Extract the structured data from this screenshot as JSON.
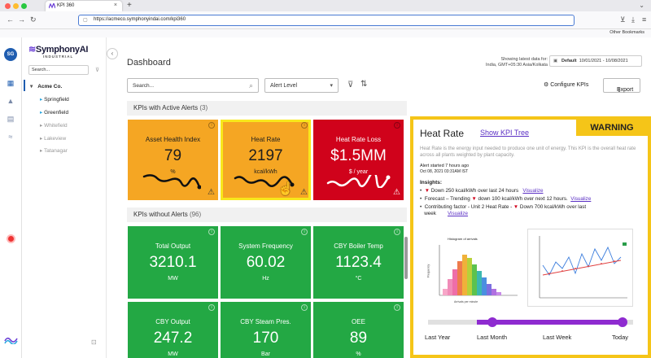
{
  "browser": {
    "tab_title": "KPI 360",
    "url": "https://acmeco.symphonyindai.com/kpi360",
    "bookmarks": "Other Bookmarks"
  },
  "rail": {
    "avatar": "SG"
  },
  "sidebar": {
    "logo": "SymphonyAI",
    "logo_sub": "INDUSTRIAL",
    "search_placeholder": "Search...",
    "root": "Acme Co.",
    "items": [
      {
        "label": "Springfield"
      },
      {
        "label": "Greenfield"
      },
      {
        "label": "Whitefield"
      },
      {
        "label": "Lakeview"
      },
      {
        "label": "Tatanagar"
      }
    ]
  },
  "header": {
    "title": "Dashboard",
    "latest_line1": "Showing latest data for:",
    "latest_line2": "India, GMT+05:30 Asia/Kolkata",
    "date_default": "Default",
    "date_range": "10/01/2021 - 10/08/2021"
  },
  "toolbar": {
    "search_placeholder": "Search...",
    "alert_level": "Alert Level",
    "configure": "Configure KPIs",
    "export": "Export"
  },
  "active": {
    "label": "KPIs with Active Alerts",
    "count": "(3)",
    "cards": [
      {
        "title": "Asset Health Index",
        "value": "79",
        "unit": "%"
      },
      {
        "title": "Heat Rate",
        "value": "2197",
        "unit": "kcal/kWh"
      },
      {
        "title": "Heat Rate Loss",
        "value": "$1.5MM",
        "unit": "$ / year"
      }
    ]
  },
  "noalert": {
    "label": "KPIs without Alerts",
    "count": "(96)",
    "cards": [
      {
        "title": "Total Output",
        "value": "3210.1",
        "unit": "MW"
      },
      {
        "title": "System Frequency",
        "value": "60.02",
        "unit": "Hz"
      },
      {
        "title": "CBY Boiler Temp",
        "value": "1123.4",
        "unit": "°C"
      },
      {
        "title": "CBY Output",
        "value": "247.2",
        "unit": "MW"
      },
      {
        "title": "CBY Steam Pres.",
        "value": "170",
        "unit": "Bar"
      },
      {
        "title": "OEE",
        "value": "89",
        "unit": "%"
      }
    ]
  },
  "panel": {
    "title": "Heat Rate",
    "link": "Show KPI Tree",
    "status": "WARNING",
    "description": "Heat Rate is the energy input needed to produce one unit of energy. This KPI is the overall heat rate across all plants weighted by plant capacity.",
    "alert_started": "Alert started 7 hours ago",
    "alert_time": "Oct 08, 2021 03:31AM IST",
    "insights_label": "Insights:",
    "insight1": "Down 250 kcal/kWh over last 24 hours",
    "insight2a": "Forecast – Trending",
    "insight2b": "down 100 kcal/kWh over next 12 hours.",
    "insight3a": "Contributing factor - Unit 2 Heat Rate -",
    "insight3b": "Down 700 kcal/kWh over last",
    "insight3c": "week",
    "visualize": "Visualize",
    "histogram_title": "Histogram of arrivals",
    "histogram_xlabel": "Arrivals per minute",
    "histogram_ylabel": "Frequency",
    "timeline": [
      "Last Year",
      "Last Month",
      "Last Week",
      "Today"
    ]
  }
}
